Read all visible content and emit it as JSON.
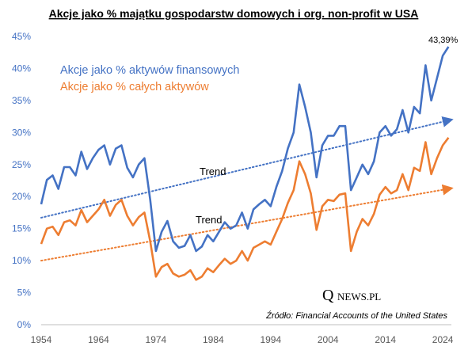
{
  "chart_data": {
    "type": "line",
    "title": "Akcje jako % majątku gospodarstw domowych i org. non-profit  w USA",
    "xlabel": "",
    "ylabel": "",
    "x_ticks": [
      "1954",
      "1964",
      "1974",
      "1984",
      "1994",
      "2004",
      "2014",
      "2024"
    ],
    "y_ticks": [
      "0%",
      "5%",
      "10%",
      "15%",
      "20%",
      "25%",
      "30%",
      "35%",
      "40%",
      "45%"
    ],
    "xlim": [
      1954,
      2025.5
    ],
    "ylim": [
      0,
      45
    ],
    "grid": false,
    "legend_position": "top-left",
    "series": [
      {
        "name": "Akcje jako % aktywów finansowych",
        "color": "#4472c4",
        "x": [
          1954,
          1955,
          1956,
          1957,
          1958,
          1959,
          1960,
          1961,
          1962,
          1963,
          1964,
          1965,
          1966,
          1967,
          1968,
          1969,
          1970,
          1971,
          1972,
          1973,
          1974,
          1975,
          1976,
          1977,
          1978,
          1979,
          1980,
          1981,
          1982,
          1983,
          1984,
          1985,
          1986,
          1987,
          1988,
          1989,
          1990,
          1991,
          1992,
          1993,
          1994,
          1995,
          1996,
          1997,
          1998,
          1999,
          2000,
          2001,
          2002,
          2003,
          2004,
          2005,
          2006,
          2007,
          2008,
          2009,
          2010,
          2011,
          2012,
          2013,
          2014,
          2015,
          2016,
          2017,
          2018,
          2019,
          2020,
          2021,
          2022,
          2023,
          2024,
          2025
        ],
        "values": [
          18.8,
          22.6,
          23.3,
          21.2,
          24.6,
          24.6,
          23.3,
          27.0,
          24.3,
          26.0,
          27.3,
          28.0,
          25.0,
          27.5,
          28.0,
          24.5,
          23.0,
          25.0,
          26.0,
          19.5,
          11.5,
          14.5,
          16.2,
          13.0,
          12.0,
          12.3,
          14.0,
          11.5,
          12.2,
          14.0,
          13.0,
          14.5,
          16.0,
          15.0,
          15.5,
          17.5,
          15.0,
          18.0,
          18.8,
          19.5,
          18.5,
          21.5,
          24.0,
          27.5,
          30.0,
          37.5,
          34.0,
          30.0,
          23.0,
          28.0,
          29.5,
          29.5,
          31.0,
          31.0,
          21.0,
          23.0,
          25.0,
          23.5,
          25.5,
          30.0,
          31.0,
          29.5,
          30.5,
          33.5,
          30.0,
          34.0,
          33.0,
          40.5,
          35.0,
          38.5,
          42.0,
          43.39
        ]
      },
      {
        "name": "Akcje jako % całych aktywów",
        "color": "#ed7d31",
        "x": [
          1954,
          1955,
          1956,
          1957,
          1958,
          1959,
          1960,
          1961,
          1962,
          1963,
          1964,
          1965,
          1966,
          1967,
          1968,
          1969,
          1970,
          1971,
          1972,
          1973,
          1974,
          1975,
          1976,
          1977,
          1978,
          1979,
          1980,
          1981,
          1982,
          1983,
          1984,
          1985,
          1986,
          1987,
          1988,
          1989,
          1990,
          1991,
          1992,
          1993,
          1994,
          1995,
          1996,
          1997,
          1998,
          1999,
          2000,
          2001,
          2002,
          2003,
          2004,
          2005,
          2006,
          2007,
          2008,
          2009,
          2010,
          2011,
          2012,
          2013,
          2014,
          2015,
          2016,
          2017,
          2018,
          2019,
          2020,
          2021,
          2022,
          2023,
          2024,
          2025
        ],
        "values": [
          12.6,
          15.0,
          15.3,
          14.0,
          16.0,
          16.3,
          15.5,
          17.9,
          16.0,
          17.0,
          18.0,
          19.5,
          17.0,
          18.7,
          19.5,
          17.0,
          15.5,
          16.8,
          17.5,
          13.0,
          7.5,
          9.0,
          9.5,
          8.0,
          7.5,
          7.8,
          8.5,
          7.0,
          7.5,
          8.8,
          8.2,
          9.3,
          10.3,
          9.5,
          10.0,
          11.5,
          10.0,
          12.0,
          12.5,
          13.0,
          12.5,
          14.5,
          16.5,
          19.0,
          21.0,
          25.5,
          23.5,
          20.5,
          14.8,
          18.5,
          19.5,
          19.3,
          20.3,
          20.5,
          11.5,
          14.5,
          16.5,
          15.5,
          17.3,
          20.3,
          21.5,
          20.5,
          21.0,
          23.5,
          21.0,
          24.5,
          24.0,
          28.5,
          23.5,
          26.0,
          28.0,
          29.2
        ]
      }
    ],
    "trendlines": [
      {
        "label": "Trend",
        "color": "#4472c4",
        "x": [
          1954,
          2025.5
        ],
        "values": [
          16.7,
          32.0
        ]
      },
      {
        "label": "Trend",
        "color": "#ed7d31",
        "x": [
          1954,
          2025.5
        ],
        "values": [
          10.0,
          21.3
        ]
      }
    ],
    "annotations": {
      "end_value": "43,39%",
      "source": "Źródło: Financial Accounts of the United States"
    }
  },
  "logo": {
    "main": "Q",
    "sub": "NEWS.PL"
  }
}
